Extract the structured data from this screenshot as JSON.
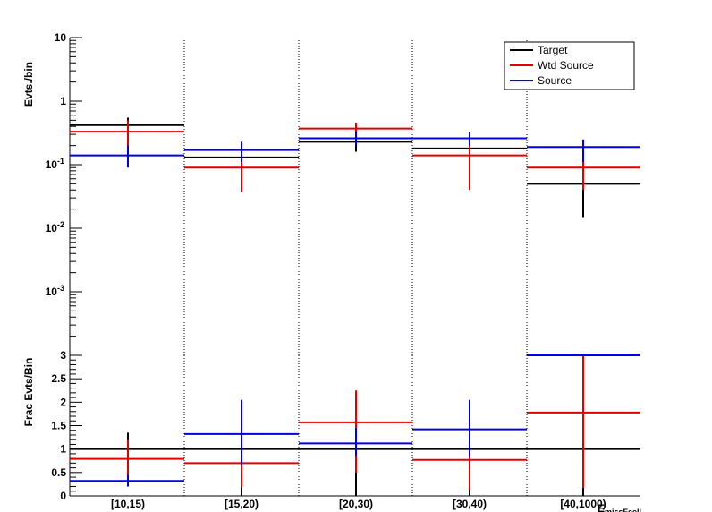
{
  "chart_data": [
    {
      "type": "line",
      "subtype": "step-histogram",
      "ylabel": "Evts./bin",
      "yscale": "log",
      "ylim": [
        0.0001,
        10
      ],
      "y_tick_labels": [
        "10",
        "1",
        "10^-1",
        "10^-2",
        "10^-3"
      ],
      "categories": [
        "[10,15)",
        "[15,20)",
        "[20,30)",
        "[30,40)",
        "[40,1000)"
      ],
      "legend_position": "top-right",
      "grid": "vertical dotted lines at bin edges",
      "series": [
        {
          "name": "Target",
          "color": "#000000",
          "values": [
            0.42,
            0.13,
            0.23,
            0.18,
            0.05
          ],
          "err_low": [
            0.29,
            0.09,
            0.16,
            0.12,
            0.015
          ],
          "err_high": [
            0.55,
            0.17,
            0.3,
            0.25,
            0.13
          ]
        },
        {
          "name": "Wtd Source",
          "color": "#e00000",
          "values": [
            0.33,
            0.09,
            0.37,
            0.14,
            0.09
          ],
          "err_low": [
            0.18,
            0.037,
            0.28,
            0.04,
            0.04
          ],
          "err_high": [
            0.5,
            0.15,
            0.46,
            0.25,
            0.15
          ]
        },
        {
          "name": "Source",
          "color": "#0000e0",
          "values": [
            0.14,
            0.17,
            0.26,
            0.26,
            0.19
          ],
          "err_low": [
            0.09,
            0.11,
            0.2,
            0.2,
            0.11
          ],
          "err_high": [
            0.2,
            0.23,
            0.33,
            0.33,
            0.25
          ]
        }
      ]
    },
    {
      "type": "line",
      "subtype": "step-histogram",
      "ylabel": "Frac Evts/Bin",
      "xlabel": "E_missFcell",
      "ylim": [
        0,
        3
      ],
      "y_tick_labels": [
        "0",
        "0.5",
        "1",
        "1.5",
        "2",
        "2.5",
        "3"
      ],
      "categories": [
        "[10,15)",
        "[15,20)",
        "[20,30)",
        "[30,40)",
        "[40,1000)"
      ],
      "grid": "vertical dotted lines at bin edges",
      "series": [
        {
          "name": "Target",
          "color": "#000000",
          "values": [
            1,
            1,
            1,
            1,
            1
          ],
          "err_low": [
            0.65,
            0,
            0,
            0,
            0
          ],
          "err_high": [
            1.35,
            1,
            1,
            1,
            1
          ]
        },
        {
          "name": "Wtd Source",
          "color": "#e00000",
          "values": [
            0.79,
            0.7,
            1.57,
            0.77,
            1.78
          ],
          "err_low": [
            0.43,
            0.18,
            0.5,
            0.12,
            0.17
          ],
          "err_high": [
            1.19,
            1.18,
            2.25,
            1.42,
            3.0
          ]
        },
        {
          "name": "Source",
          "color": "#0000e0",
          "values": [
            0.32,
            1.32,
            1.12,
            1.42,
            3.0
          ],
          "err_low": [
            0.2,
            0.65,
            0.85,
            0.85,
            3.0
          ],
          "err_high": [
            0.45,
            2.05,
            1.45,
            2.05,
            3.0
          ]
        }
      ]
    }
  ],
  "legend": {
    "target": "Target",
    "wtd_source": "Wtd Source",
    "source": "Source"
  }
}
